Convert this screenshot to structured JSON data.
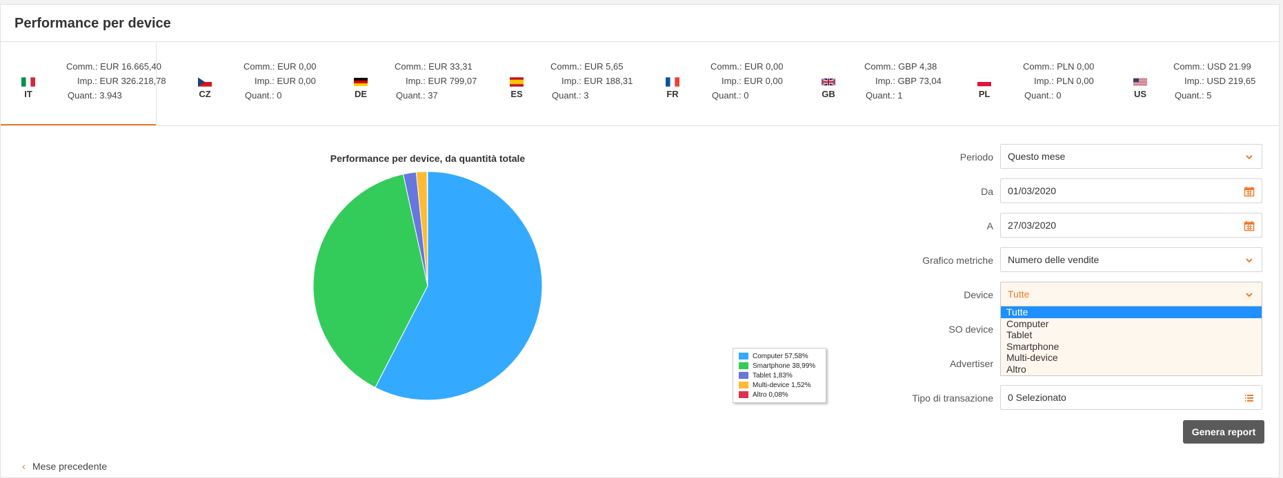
{
  "page": {
    "title": "Performance per device",
    "prev_link": "Mese precedente",
    "generate_button": "Genera report"
  },
  "countries": [
    {
      "code": "IT",
      "comm": "Comm.: EUR 16.665,40",
      "imp": "Imp.: EUR 326.218,78",
      "quant": "Quant.: 3.943",
      "active": true
    },
    {
      "code": "CZ",
      "comm": "Comm.: EUR 0,00",
      "imp": "Imp.: EUR 0,00",
      "quant": "Quant.: 0"
    },
    {
      "code": "DE",
      "comm": "Comm.: EUR 33,31",
      "imp": "Imp.: EUR 799,07",
      "quant": "Quant.: 37"
    },
    {
      "code": "ES",
      "comm": "Comm.: EUR 5,65",
      "imp": "Imp.: EUR 188,31",
      "quant": "Quant.: 3"
    },
    {
      "code": "FR",
      "comm": "Comm.: EUR 0,00",
      "imp": "Imp.: EUR 0,00",
      "quant": "Quant.: 0"
    },
    {
      "code": "GB",
      "comm": "Comm.: GBP 4,38",
      "imp": "Imp.: GBP 73,04",
      "quant": "Quant.: 1"
    },
    {
      "code": "PL",
      "comm": "Comm.: PLN 0,00",
      "imp": "Imp.: PLN 0,00",
      "quant": "Quant.: 0"
    },
    {
      "code": "US",
      "comm": "Comm.: USD 21.99",
      "imp": "Imp.: USD 219,65",
      "quant": "Quant.: 5"
    }
  ],
  "chart_data": {
    "type": "pie",
    "title": "Performance per device, da quantità totale",
    "slices": [
      {
        "label": "Computer 57,58%",
        "value": 57.58,
        "color": "#33aaff"
      },
      {
        "label": "Smartphone 38,99%",
        "value": 38.99,
        "color": "#33cc5a"
      },
      {
        "label": "Tablet 1,83%",
        "value": 1.83,
        "color": "#6677dd"
      },
      {
        "label": "Multi-device 1,52%",
        "value": 1.52,
        "color": "#ffbb33"
      },
      {
        "label": "Altro 0,08%",
        "value": 0.08,
        "color": "#e03050"
      }
    ],
    "legend": "bottom-right"
  },
  "form": {
    "periodo": {
      "label": "Periodo",
      "value": "Questo mese"
    },
    "da": {
      "label": "Da",
      "value": "01/03/2020"
    },
    "a": {
      "label": "A",
      "value": "27/03/2020"
    },
    "grafico": {
      "label": "Grafico metriche",
      "value": "Numero delle vendite"
    },
    "device": {
      "label": "Device",
      "value": "Tutte",
      "options": [
        "Tutte",
        "Computer",
        "Tablet",
        "Smartphone",
        "Multi-device",
        "Altro"
      ]
    },
    "so_device": {
      "label": "SO device"
    },
    "advertiser": {
      "label": "Advertiser"
    },
    "tipo": {
      "label": "Tipo di transazione",
      "value": "0 Selezionato"
    }
  },
  "colors": {
    "accent": "#f07a28",
    "selected_option": "#1e90ff",
    "button": "#5a5a5a"
  }
}
